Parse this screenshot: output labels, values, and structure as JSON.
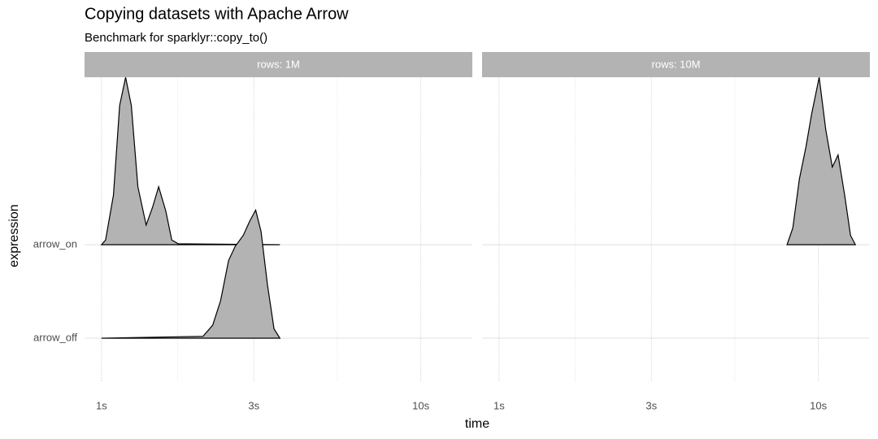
{
  "chart_data": {
    "type": "ridgeline",
    "title": "Copying datasets with Apache Arrow",
    "subtitle": "Benchmark for sparklyr::copy_to()",
    "x_label": "time",
    "y_label": "expression",
    "x_scale": "log",
    "xlim": [
      0.885,
      14.5
    ],
    "xticks": [
      {
        "value": 1,
        "label": "1s"
      },
      {
        "value": 3,
        "label": "3s"
      },
      {
        "value": 10,
        "label": "10s"
      }
    ],
    "minor_xticks": [
      1.732,
      5.477
    ],
    "grid": true,
    "fill": "#b3b3b3",
    "categories": [
      "arrow_off",
      "arrow_on"
    ],
    "facets": [
      {
        "label": "rows: 1M",
        "series": [
          {
            "name": "arrow_on",
            "x": [
              1.0,
              1.03,
              1.09,
              1.14,
              1.19,
              1.24,
              1.3,
              1.38,
              1.445,
              1.51,
              1.59,
              1.66,
              1.74,
              3.62
            ],
            "values": [
              0,
              0.05,
              0.53,
              1.49,
              1.79,
              1.49,
              0.62,
              0.21,
              0.4,
              0.62,
              0.36,
              0.05,
              0.01,
              0
            ]
          },
          {
            "name": "arrow_off",
            "x": [
              1.0,
              2.08,
              2.23,
              2.36,
              2.5,
              2.62,
              2.78,
              2.91,
              3.04,
              3.16,
              3.31,
              3.47,
              3.62
            ],
            "values": [
              0,
              0.02,
              0.14,
              0.4,
              0.83,
              0.98,
              1.1,
              1.25,
              1.37,
              1.14,
              0.57,
              0.1,
              0
            ]
          }
        ]
      },
      {
        "label": "rows: 10M",
        "series": [
          {
            "name": "arrow_on",
            "x": [
              7.98,
              8.32,
              8.72,
              9.15,
              9.53,
              10.06,
              10.55,
              11.06,
              11.53,
              12.09,
              12.61,
              13.06
            ],
            "values": [
              0,
              0.18,
              0.7,
              1.05,
              1.4,
              1.79,
              1.23,
              0.83,
              0.96,
              0.53,
              0.1,
              0
            ]
          }
        ]
      }
    ]
  }
}
